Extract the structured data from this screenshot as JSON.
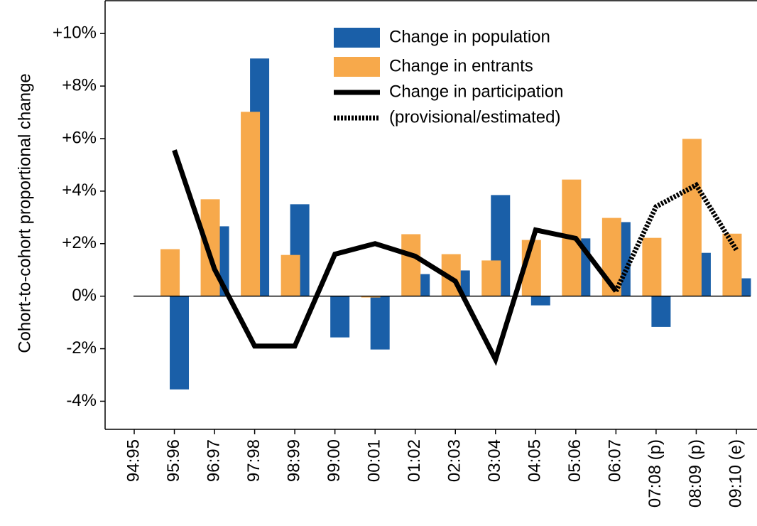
{
  "chart_data": {
    "type": "bar",
    "y_label": "Cohort-to-cohort proportional change",
    "categories": [
      "94:95",
      "95:96",
      "96:97",
      "97:98",
      "98:99",
      "99:00",
      "00:01",
      "01:02",
      "02:03",
      "03:04",
      "04:05",
      "05:06",
      "06:07",
      "07:08 (p)",
      "08:09 (p)",
      "09:10 (e)"
    ],
    "series": [
      {
        "name": "Change in population",
        "type": "bar",
        "color": "#1a5fa8",
        "offset": 7,
        "values": [
          null,
          -3.55,
          2.66,
          9.05,
          3.5,
          -1.57,
          -2.03,
          0.84,
          0.98,
          3.85,
          -0.35,
          2.2,
          2.82,
          -1.17,
          1.65,
          0.68
        ]
      },
      {
        "name": "Change in entrants",
        "type": "bar",
        "color": "#f7a94b",
        "offset": -6,
        "values": [
          null,
          1.79,
          3.69,
          7.02,
          1.57,
          null,
          -0.05,
          2.36,
          1.6,
          1.36,
          2.14,
          4.44,
          2.98,
          2.22,
          5.99,
          2.38
        ]
      },
      {
        "name": "Change in participation",
        "type": "line",
        "color": "#000000",
        "dash": "solid",
        "values": [
          null,
          5.56,
          1.03,
          -1.9,
          -1.9,
          1.6,
          2.0,
          1.52,
          0.57,
          -2.41,
          2.52,
          2.2,
          0.19,
          null,
          null,
          null
        ]
      },
      {
        "name": "(provisional/estimated)",
        "type": "line",
        "color": "#000000",
        "dash": "dotted",
        "values": [
          null,
          null,
          null,
          null,
          null,
          null,
          null,
          null,
          null,
          null,
          null,
          null,
          0.19,
          3.41,
          4.23,
          1.76
        ]
      }
    ],
    "ylim": [
      -5.07,
      11.25
    ],
    "yticks": [
      {
        "value": 10,
        "label": "+10%"
      },
      {
        "value": 8,
        "label": "+8%"
      },
      {
        "value": 6,
        "label": "+6%"
      },
      {
        "value": 4,
        "label": "+4%"
      },
      {
        "value": 2,
        "label": "+2%"
      },
      {
        "value": 0,
        "label": "0%"
      },
      {
        "value": -2,
        "label": "-2%"
      },
      {
        "value": -4,
        "label": "-4%"
      }
    ],
    "legend": "top-center"
  }
}
